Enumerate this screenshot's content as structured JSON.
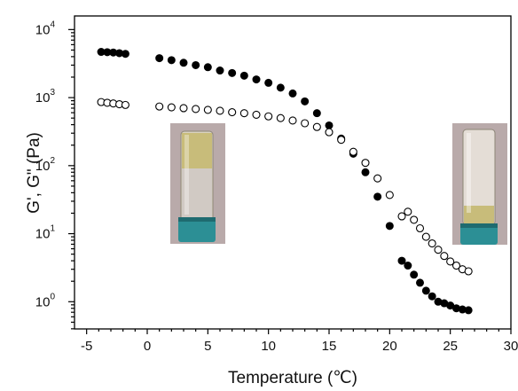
{
  "chart_data": {
    "type": "scatter",
    "xlabel": "Temperature (℃)",
    "ylabel": "G', G\" (Pa)",
    "xlim": [
      -6,
      30
    ],
    "ylim_log10": [
      -0.4,
      4.2
    ],
    "y_scale": "log",
    "grid": false,
    "x_ticks": [
      -5,
      0,
      5,
      10,
      15,
      20,
      25,
      30
    ],
    "y_ticks": [
      {
        "base": "10",
        "exp": "0"
      },
      {
        "base": "10",
        "exp": "1"
      },
      {
        "base": "10",
        "exp": "2"
      },
      {
        "base": "10",
        "exp": "3"
      },
      {
        "base": "10",
        "exp": "4"
      }
    ],
    "series": [
      {
        "marker": "filled-circle",
        "color": "#000000",
        "points": [
          [
            -3.8,
            4700
          ],
          [
            -3.3,
            4650
          ],
          [
            -2.8,
            4600
          ],
          [
            -2.3,
            4500
          ],
          [
            -1.8,
            4400
          ],
          [
            1.0,
            3800
          ],
          [
            2.0,
            3550
          ],
          [
            3.0,
            3250
          ],
          [
            4.0,
            3000
          ],
          [
            5.0,
            2800
          ],
          [
            6.0,
            2500
          ],
          [
            7.0,
            2300
          ],
          [
            8.0,
            2100
          ],
          [
            9.0,
            1850
          ],
          [
            10.0,
            1650
          ],
          [
            11.0,
            1400
          ],
          [
            12.0,
            1150
          ],
          [
            13.0,
            880
          ],
          [
            14.0,
            590
          ],
          [
            15.0,
            390
          ],
          [
            16.0,
            250
          ],
          [
            17.0,
            150
          ],
          [
            18.0,
            80
          ],
          [
            19.0,
            35
          ],
          [
            20.0,
            13
          ],
          [
            21.0,
            4.0
          ],
          [
            21.5,
            3.4
          ],
          [
            22.0,
            2.5
          ],
          [
            22.5,
            1.9
          ],
          [
            23.0,
            1.45
          ],
          [
            23.5,
            1.2
          ],
          [
            24.0,
            1.0
          ],
          [
            24.5,
            0.95
          ],
          [
            25.0,
            0.88
          ],
          [
            25.5,
            0.8
          ],
          [
            26.0,
            0.77
          ],
          [
            26.5,
            0.75
          ]
        ]
      },
      {
        "marker": "open-circle",
        "color": "#000000",
        "points": [
          [
            -3.8,
            860
          ],
          [
            -3.3,
            840
          ],
          [
            -2.8,
            820
          ],
          [
            -2.3,
            800
          ],
          [
            -1.8,
            780
          ],
          [
            1.0,
            740
          ],
          [
            2.0,
            720
          ],
          [
            3.0,
            700
          ],
          [
            4.0,
            680
          ],
          [
            5.0,
            660
          ],
          [
            6.0,
            640
          ],
          [
            7.0,
            610
          ],
          [
            8.0,
            590
          ],
          [
            9.0,
            560
          ],
          [
            10.0,
            530
          ],
          [
            11.0,
            500
          ],
          [
            12.0,
            460
          ],
          [
            13.0,
            420
          ],
          [
            14.0,
            370
          ],
          [
            15.0,
            310
          ],
          [
            16.0,
            240
          ],
          [
            17.0,
            160
          ],
          [
            18.0,
            110
          ],
          [
            19.0,
            65
          ],
          [
            20.0,
            37
          ],
          [
            21.0,
            18
          ],
          [
            21.5,
            21
          ],
          [
            22.0,
            16
          ],
          [
            22.5,
            12
          ],
          [
            23.0,
            9.0
          ],
          [
            23.5,
            7.2
          ],
          [
            24.0,
            5.8
          ],
          [
            24.5,
            4.7
          ],
          [
            25.0,
            3.9
          ],
          [
            25.5,
            3.4
          ],
          [
            26.0,
            3.0
          ],
          [
            26.5,
            2.8
          ]
        ]
      }
    ]
  },
  "insets": [
    {
      "name": "vial-photo-gel",
      "liquid_color": "#c8bc7a",
      "cap_color": "#2c8f95",
      "bg_color": "#b9aaaa"
    },
    {
      "name": "vial-photo-sol",
      "liquid_color": "#c8bc7a",
      "cap_color": "#2c8f95",
      "bg_color": "#b9aaaa"
    }
  ]
}
